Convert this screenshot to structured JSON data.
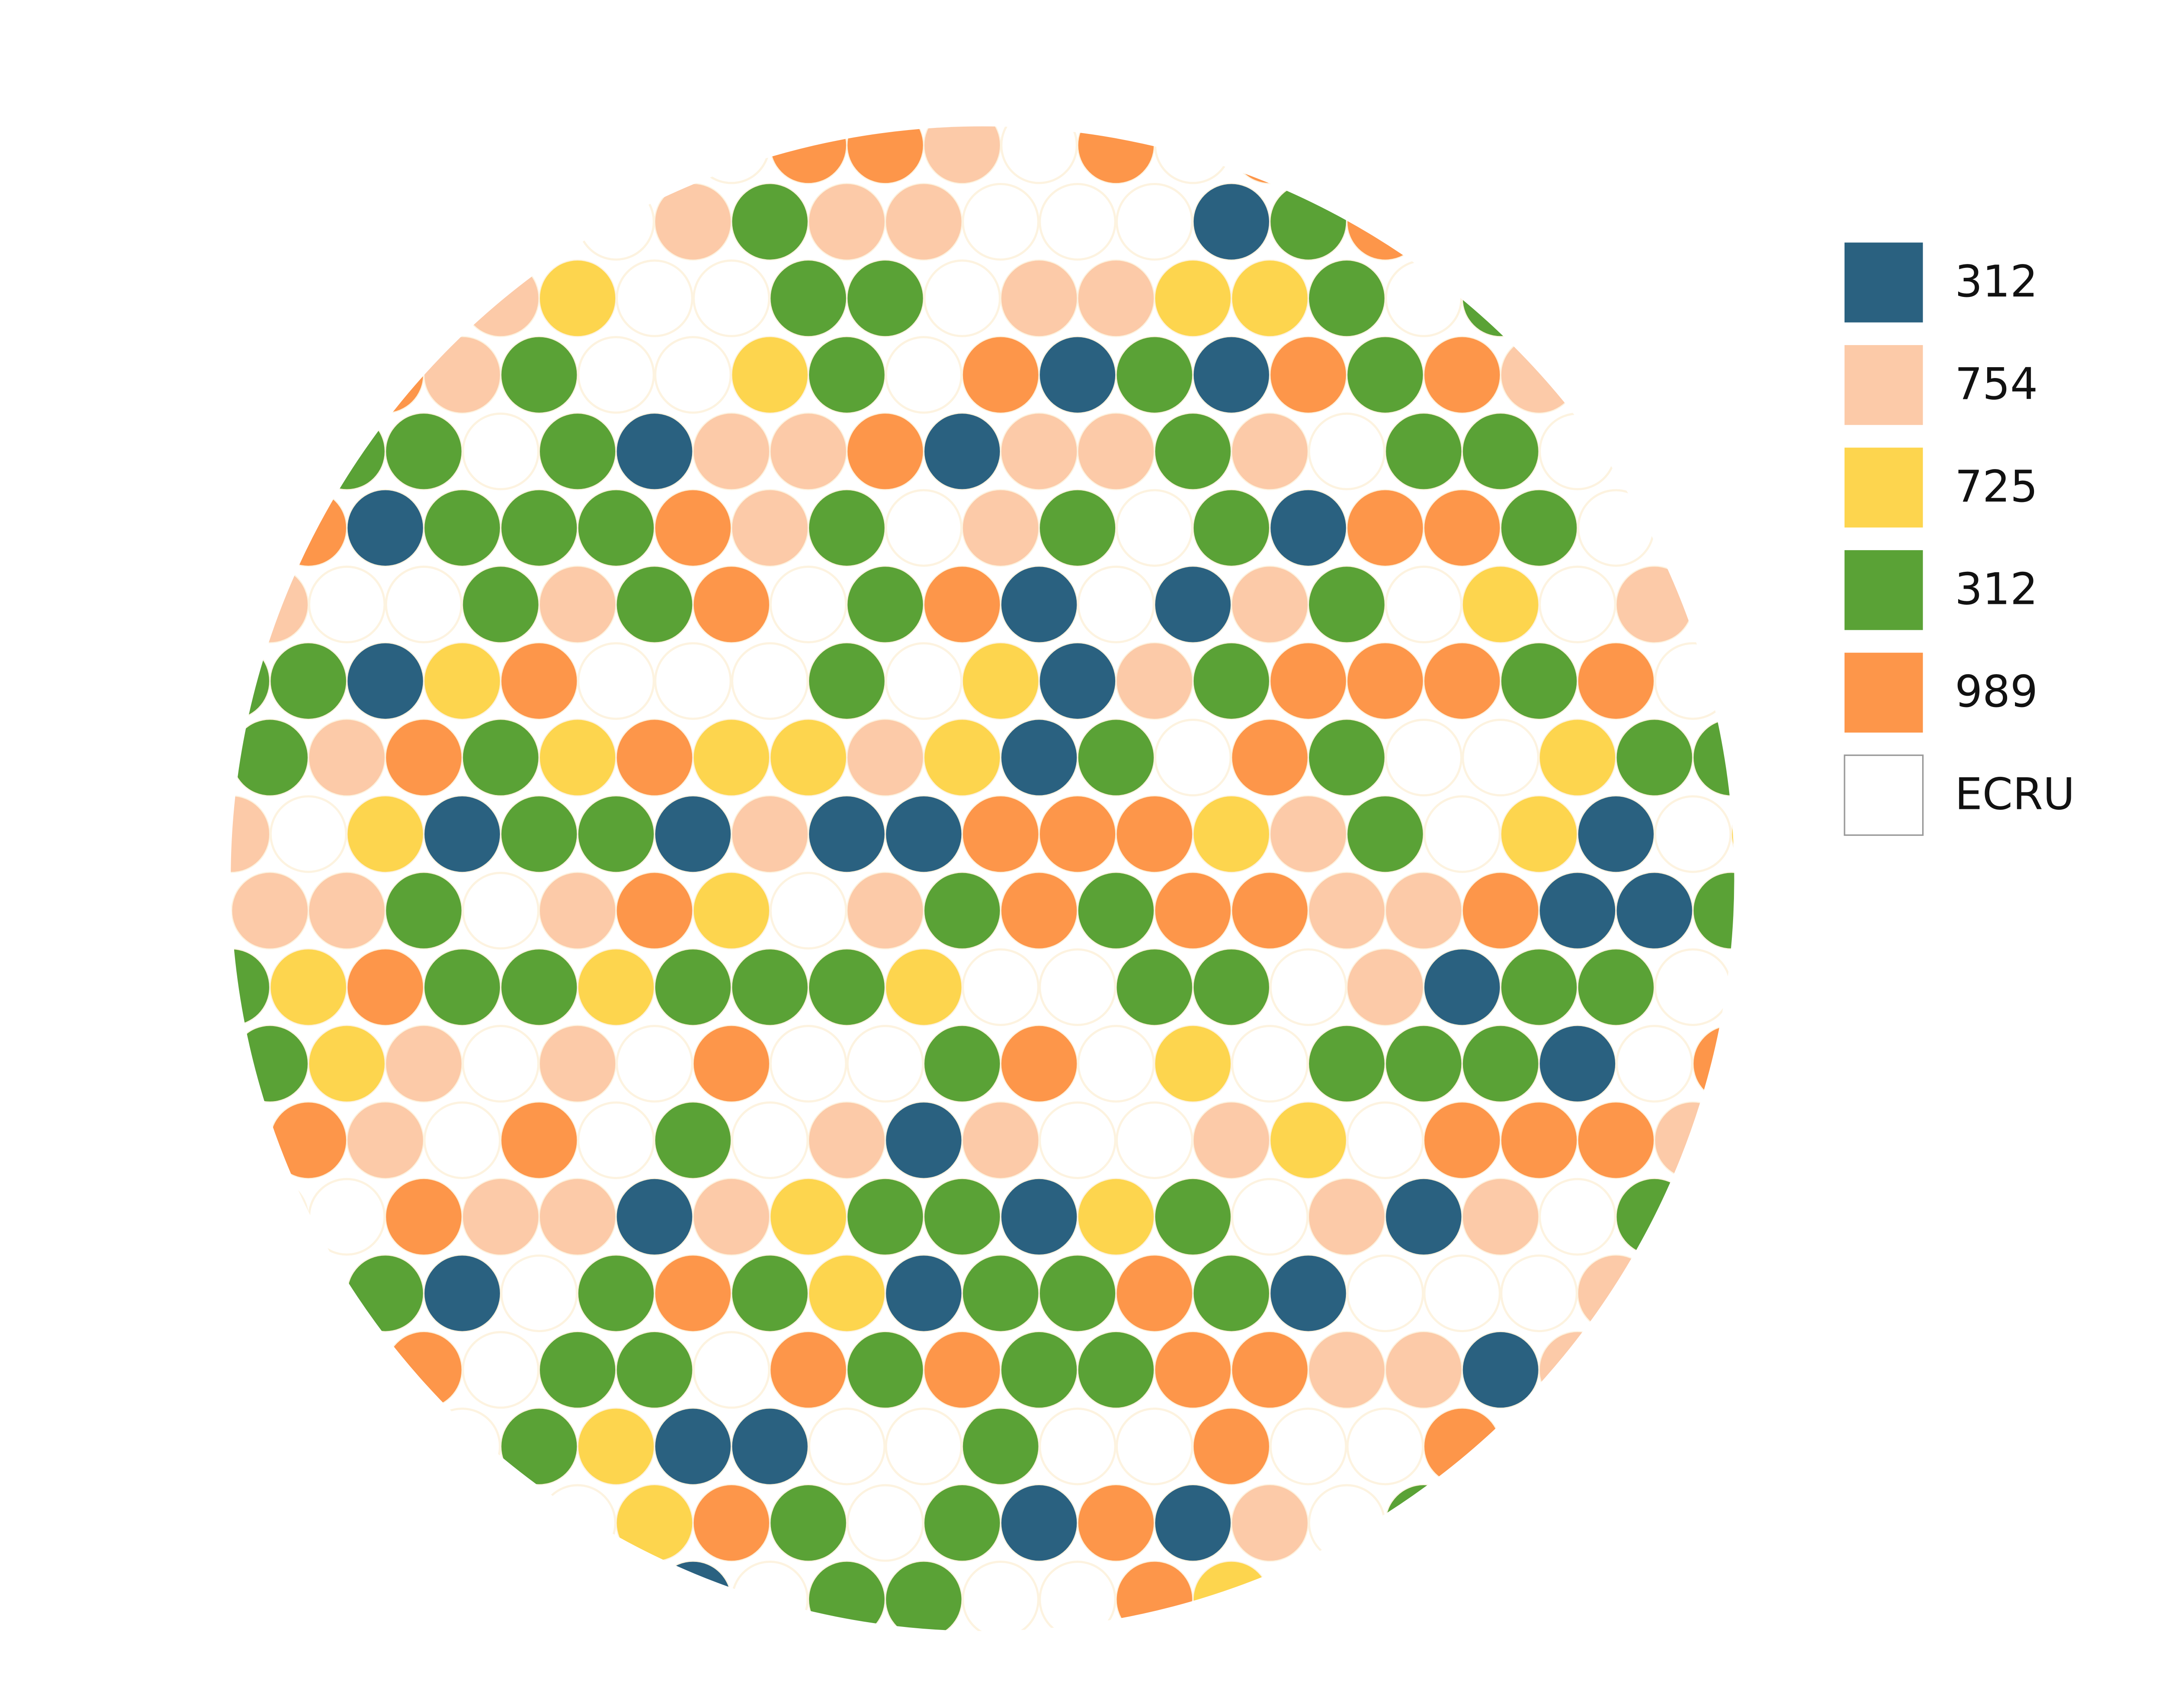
{
  "legend": [
    {
      "label": "312",
      "color": "#2a6180"
    },
    {
      "label": "754",
      "color": "#fccaa8"
    },
    {
      "label": "725",
      "color": "#fdd54e"
    },
    {
      "label": "312",
      "color": "#5aa236"
    },
    {
      "label": "989",
      "color": "#fd964a"
    },
    {
      "label": "ECRU",
      "color": "#ffffff"
    }
  ]
}
